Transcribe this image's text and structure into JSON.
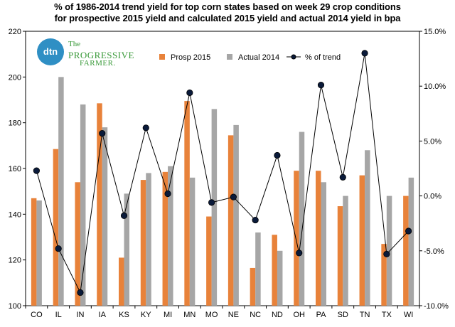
{
  "title_line1": "% of 1986-2014 trend yield for top corn states based on week 29 crop conditions",
  "title_line2": "for prospective 2015 yield and calculated 2015 yield and actual 2014 yield in bpa",
  "logo": {
    "badge": "dtn",
    "line1": "The",
    "line2": "PROGRESSIVE",
    "line3": "FARMER."
  },
  "colors": {
    "prosp": "#e8823a",
    "actual": "#a6a6a6",
    "trend_line": "#000000",
    "marker_fill": "#0a1a3a"
  },
  "chart_data": {
    "type": "bar",
    "categories": [
      "CO",
      "IL",
      "IN",
      "IA",
      "KS",
      "KY",
      "MI",
      "MN",
      "MO",
      "NE",
      "NC",
      "ND",
      "OH",
      "PA",
      "SD",
      "TN",
      "TX",
      "WI"
    ],
    "series": [
      {
        "name": "Prosp 2015",
        "type": "bar",
        "axis": "left",
        "values": [
          147,
          168.5,
          154,
          188.5,
          121,
          155,
          158.5,
          189.5,
          139,
          174.5,
          116.5,
          131,
          159,
          159,
          143.5,
          157,
          127,
          148
        ]
      },
      {
        "name": "Actual 2014",
        "type": "bar",
        "axis": "left",
        "values": [
          146,
          200,
          188,
          178,
          149,
          158,
          161,
          156,
          186,
          179,
          132,
          124,
          176,
          154,
          148,
          168,
          148,
          156
        ]
      },
      {
        "name": "% of trend",
        "type": "line",
        "axis": "right",
        "values": [
          2.3,
          -4.8,
          -8.8,
          5.7,
          -1.8,
          6.2,
          0.2,
          9.4,
          -0.6,
          -0.1,
          -2.2,
          3.7,
          -5.2,
          10.1,
          1.7,
          13.0,
          -5.3,
          -3.2
        ]
      }
    ],
    "y_left": {
      "min": 100,
      "max": 220,
      "ticks": [
        "100",
        "120",
        "140",
        "160",
        "180",
        "200",
        "220"
      ]
    },
    "y_right": {
      "min": -10,
      "max": 15,
      "ticks": [
        "-10.0%",
        "-5.0%",
        "0.0%",
        "5.0%",
        "10.0%",
        "15.0%"
      ]
    },
    "grid": false,
    "legend_position": "top-right"
  }
}
